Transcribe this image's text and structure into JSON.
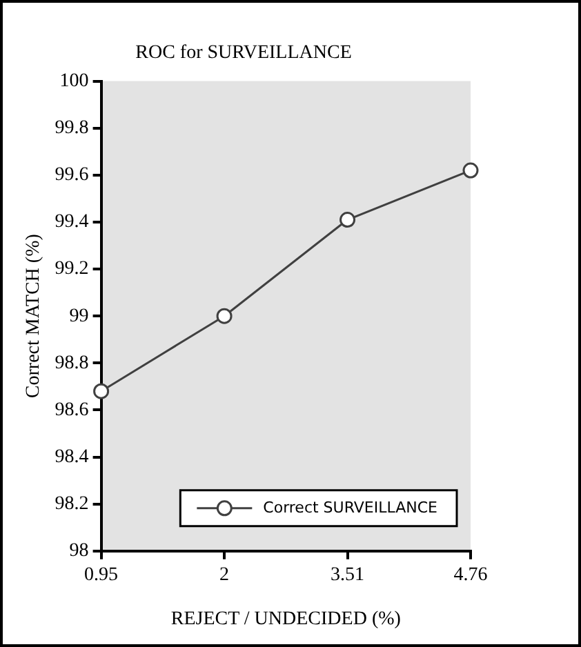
{
  "chart_data": {
    "type": "line",
    "title": "ROC for SURVEILLANCE",
    "xlabel": "REJECT / UNDECIDED (%)",
    "ylabel": "Correct MATCH (%)",
    "categories": [
      "0.95",
      "2",
      "3.51",
      "4.76"
    ],
    "series": [
      {
        "name": "Correct SURVEILLANCE",
        "color": "#404040",
        "values": [
          98.68,
          99.0,
          99.41,
          99.62
        ]
      }
    ],
    "ylim": [
      98,
      100
    ],
    "yticks": [
      98,
      98.2,
      98.4,
      98.6,
      98.8,
      99,
      99.2,
      99.4,
      99.6,
      99.8,
      100
    ],
    "grid": false,
    "legend": "bottom right",
    "marker": "circle",
    "line_style": "solid"
  }
}
